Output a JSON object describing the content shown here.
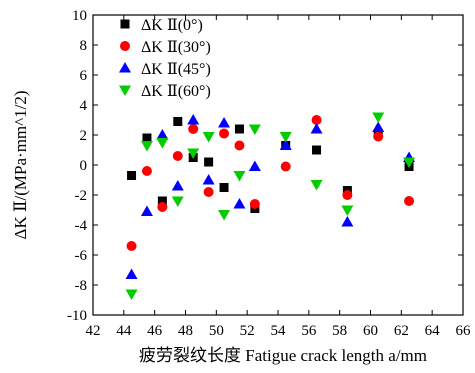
{
  "chart_data": {
    "type": "scatter",
    "title": "",
    "xlabel": "疲劳裂纹长度 Fatigue crack length a/mm",
    "ylabel": "ΔK Ⅱ/(MPa·mm^1/2)",
    "xlim": [
      42,
      66
    ],
    "ylim": [
      -10,
      10
    ],
    "xticks": [
      42,
      44,
      46,
      48,
      50,
      52,
      54,
      56,
      58,
      60,
      62,
      64,
      66
    ],
    "yticks": [
      -10,
      -8,
      -6,
      -4,
      -2,
      0,
      2,
      4,
      6,
      8,
      10
    ],
    "grid": false,
    "legend_position": "top-left",
    "series": [
      {
        "name": "ΔK Ⅱ(0°)",
        "marker": "square",
        "color": "#000000",
        "x": [
          44.5,
          45.5,
          46.5,
          47.5,
          48.5,
          49.5,
          50.5,
          51.5,
          52.5,
          54.5,
          56.5,
          58.5,
          60.5,
          62.5
        ],
        "y": [
          -0.7,
          1.8,
          -2.4,
          2.9,
          0.5,
          0.2,
          -1.5,
          2.4,
          -2.9,
          1.3,
          1.0,
          -1.7,
          2.1,
          -0.1
        ]
      },
      {
        "name": "ΔK Ⅱ(30°)",
        "marker": "circle",
        "color": "#ff0000",
        "x": [
          44.5,
          45.5,
          46.5,
          47.5,
          48.5,
          49.5,
          50.5,
          51.5,
          52.5,
          54.5,
          56.5,
          58.5,
          60.5,
          62.5
        ],
        "y": [
          -5.4,
          -0.4,
          -2.8,
          0.6,
          2.4,
          -1.8,
          2.1,
          1.3,
          -2.6,
          -0.1,
          3.0,
          -2.0,
          1.9,
          -2.4
        ]
      },
      {
        "name": "ΔK Ⅱ(45°)",
        "marker": "triangle-up",
        "color": "#0000ff",
        "x": [
          44.5,
          45.5,
          46.5,
          47.5,
          48.5,
          49.5,
          50.5,
          51.5,
          52.5,
          54.5,
          56.5,
          58.5,
          60.5,
          62.5
        ],
        "y": [
          -7.3,
          -3.1,
          2.0,
          -1.4,
          3.0,
          -1.0,
          2.8,
          -2.6,
          -0.1,
          1.3,
          2.4,
          -3.8,
          2.5,
          0.5
        ]
      },
      {
        "name": "ΔK Ⅱ(60°)",
        "marker": "triangle-down",
        "color": "#00cc00",
        "x": [
          44.5,
          45.5,
          46.5,
          47.5,
          48.5,
          49.5,
          50.5,
          51.5,
          52.5,
          54.5,
          56.5,
          58.5,
          60.5,
          62.5
        ],
        "y": [
          -8.6,
          1.3,
          1.5,
          -2.4,
          0.8,
          1.9,
          -3.3,
          -0.7,
          2.4,
          1.9,
          -1.3,
          -3.0,
          3.2,
          0.2
        ]
      }
    ]
  }
}
